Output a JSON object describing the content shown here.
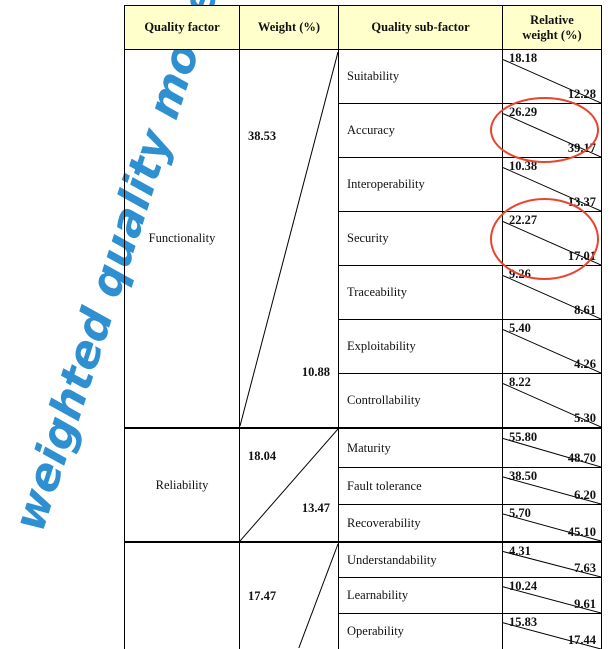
{
  "side_title": "weighted quality model",
  "table": {
    "headers": {
      "factor": "Quality factor",
      "weight": "Weight (%)",
      "subfactor": "Quality sub-factor",
      "relative_line1": "Relative",
      "relative_line2": "weight (%)"
    },
    "groups": [
      {
        "factor": "Functionality",
        "weight_a": "38.53",
        "weight_b": "10.88",
        "subs": [
          {
            "name": "Suitability",
            "a": "18.18",
            "b": "12.28"
          },
          {
            "name": "Accuracy",
            "a": "26.29",
            "b": "39.17"
          },
          {
            "name": "Interoperability",
            "a": "10.38",
            "b": "13.37"
          },
          {
            "name": "Security",
            "a": "22.27",
            "b": "17.01"
          },
          {
            "name": "Traceability",
            "a": "9.26",
            "b": "8.61"
          },
          {
            "name": "Exploitability",
            "a": "5.40",
            "b": "4.26"
          },
          {
            "name": "Controllability",
            "a": "8.22",
            "b": "5.30"
          }
        ]
      },
      {
        "factor": "Reliability",
        "weight_a": "18.04",
        "weight_b": "13.47",
        "subs": [
          {
            "name": "Maturity",
            "a": "55.80",
            "b": "48.70"
          },
          {
            "name": "Fault tolerance",
            "a": "38.50",
            "b": "6.20"
          },
          {
            "name": "Recoverability",
            "a": "5.70",
            "b": "45.10"
          }
        ]
      },
      {
        "factor": "",
        "weight_a": "17.47",
        "weight_b": "",
        "subs": [
          {
            "name": "Understandability",
            "a": "4.31",
            "b": "7.63"
          },
          {
            "name": "Learnability",
            "a": "10.24",
            "b": "9.61"
          },
          {
            "name": "Operability",
            "a": "15.83",
            "b": "17.44"
          }
        ]
      }
    ]
  },
  "annotation_color": "#e8452c",
  "title_color": "#2e8fd1"
}
